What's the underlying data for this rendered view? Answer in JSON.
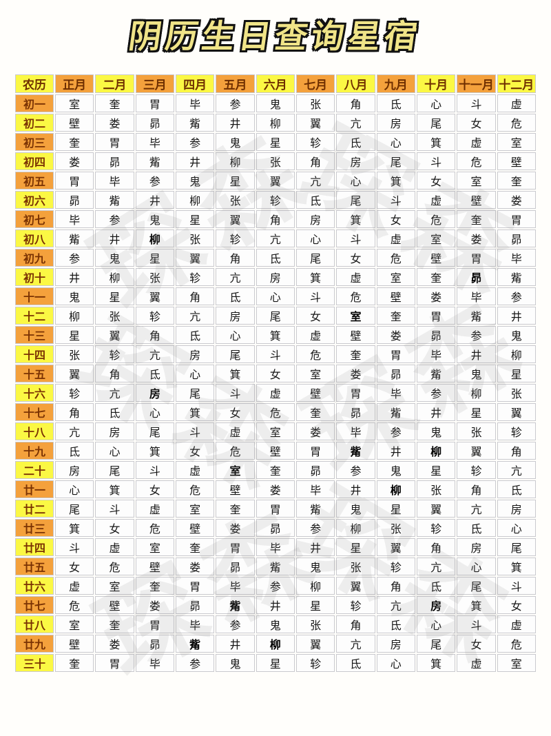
{
  "title": "阴历生日查询星宿",
  "colors": {
    "orange": "#f4a13c",
    "yellow": "#fbf844",
    "header_text": "#6e2e00",
    "label_text": "#7a3203",
    "cell_text": "#161616",
    "border": "#c9c9ce",
    "title_fill": "#f0e488",
    "title_outline": "#111111",
    "watermark_gray": "#8a8a8a"
  },
  "table": {
    "corner_label": "农历",
    "months": [
      "正月",
      "二月",
      "三月",
      "四月",
      "五月",
      "六月",
      "七月",
      "八月",
      "九月",
      "十月",
      "十一月",
      "十二月"
    ],
    "rows": [
      {
        "label": "初一",
        "cells": [
          "室",
          "奎",
          "胃",
          "毕",
          "参",
          "鬼",
          "张",
          "角",
          "氐",
          "心",
          "斗",
          "虚"
        ]
      },
      {
        "label": "初二",
        "cells": [
          "壁",
          "娄",
          "昴",
          "觜",
          "井",
          "柳",
          "翼",
          "亢",
          "房",
          "尾",
          "女",
          "危"
        ]
      },
      {
        "label": "初三",
        "cells": [
          "奎",
          "胃",
          "毕",
          "参",
          "鬼",
          "星",
          "轸",
          "氐",
          "心",
          "箕",
          "虚",
          "室"
        ]
      },
      {
        "label": "初四",
        "cells": [
          "娄",
          "昴",
          "觜",
          "井",
          "柳",
          "张",
          "角",
          "房",
          "尾",
          "斗",
          "危",
          "壁"
        ]
      },
      {
        "label": "初五",
        "cells": [
          "胃",
          "毕",
          "参",
          "鬼",
          "星",
          "翼",
          "亢",
          "心",
          "箕",
          "女",
          "室",
          "奎"
        ]
      },
      {
        "label": "初六",
        "cells": [
          "昴",
          "觜",
          "井",
          "柳",
          "张",
          "轸",
          "氐",
          "尾",
          "斗",
          "虚",
          "壁",
          "娄"
        ]
      },
      {
        "label": "初七",
        "cells": [
          "毕",
          "参",
          "鬼",
          "星",
          "翼",
          "角",
          "房",
          "箕",
          "女",
          "危",
          "奎",
          "胃"
        ]
      },
      {
        "label": "初八",
        "cells": [
          "觜",
          "井",
          "柳",
          "张",
          "轸",
          "亢",
          "心",
          "斗",
          "虚",
          "室",
          "娄",
          "昴"
        ]
      },
      {
        "label": "初九",
        "cells": [
          "参",
          "鬼",
          "星",
          "翼",
          "角",
          "氐",
          "尾",
          "女",
          "危",
          "壁",
          "胃",
          "毕"
        ]
      },
      {
        "label": "初十",
        "cells": [
          "井",
          "柳",
          "张",
          "轸",
          "亢",
          "房",
          "箕",
          "虚",
          "室",
          "奎",
          "昴",
          "觜"
        ]
      },
      {
        "label": "十一",
        "cells": [
          "鬼",
          "星",
          "翼",
          "角",
          "氐",
          "心",
          "斗",
          "危",
          "壁",
          "娄",
          "毕",
          "参"
        ]
      },
      {
        "label": "十二",
        "cells": [
          "柳",
          "张",
          "轸",
          "亢",
          "房",
          "尾",
          "女",
          "室",
          "奎",
          "胃",
          "觜",
          "井"
        ]
      },
      {
        "label": "十三",
        "cells": [
          "星",
          "翼",
          "角",
          "氐",
          "心",
          "箕",
          "虚",
          "壁",
          "娄",
          "昴",
          "参",
          "鬼"
        ]
      },
      {
        "label": "十四",
        "cells": [
          "张",
          "轸",
          "亢",
          "房",
          "尾",
          "斗",
          "危",
          "奎",
          "胃",
          "毕",
          "井",
          "柳"
        ]
      },
      {
        "label": "十五",
        "cells": [
          "翼",
          "角",
          "氐",
          "心",
          "箕",
          "女",
          "室",
          "娄",
          "昴",
          "觜",
          "鬼",
          "星"
        ]
      },
      {
        "label": "十六",
        "cells": [
          "轸",
          "亢",
          "房",
          "尾",
          "斗",
          "虚",
          "壁",
          "胃",
          "毕",
          "参",
          "柳",
          "张"
        ]
      },
      {
        "label": "十七",
        "cells": [
          "角",
          "氐",
          "心",
          "箕",
          "女",
          "危",
          "奎",
          "昴",
          "觜",
          "井",
          "星",
          "翼"
        ]
      },
      {
        "label": "十八",
        "cells": [
          "亢",
          "房",
          "尾",
          "斗",
          "虚",
          "室",
          "娄",
          "毕",
          "参",
          "鬼",
          "张",
          "轸"
        ]
      },
      {
        "label": "十九",
        "cells": [
          "氐",
          "心",
          "箕",
          "女",
          "危",
          "壁",
          "胃",
          "觜",
          "井",
          "柳",
          "翼",
          "角"
        ]
      },
      {
        "label": "二十",
        "cells": [
          "房",
          "尾",
          "斗",
          "虚",
          "室",
          "奎",
          "昴",
          "参",
          "鬼",
          "星",
          "轸",
          "亢"
        ]
      },
      {
        "label": "廿一",
        "cells": [
          "心",
          "箕",
          "女",
          "危",
          "壁",
          "娄",
          "毕",
          "井",
          "柳",
          "张",
          "角",
          "氐"
        ]
      },
      {
        "label": "廿二",
        "cells": [
          "尾",
          "斗",
          "虚",
          "室",
          "奎",
          "胃",
          "觜",
          "鬼",
          "星",
          "翼",
          "亢",
          "房"
        ]
      },
      {
        "label": "廿三",
        "cells": [
          "箕",
          "女",
          "危",
          "壁",
          "娄",
          "昴",
          "参",
          "柳",
          "张",
          "轸",
          "氐",
          "心"
        ]
      },
      {
        "label": "廿四",
        "cells": [
          "斗",
          "虚",
          "室",
          "奎",
          "胃",
          "毕",
          "井",
          "星",
          "翼",
          "角",
          "房",
          "尾"
        ]
      },
      {
        "label": "廿五",
        "cells": [
          "女",
          "危",
          "壁",
          "娄",
          "昴",
          "觜",
          "鬼",
          "张",
          "轸",
          "亢",
          "心",
          "箕"
        ]
      },
      {
        "label": "廿六",
        "cells": [
          "虚",
          "室",
          "奎",
          "胃",
          "毕",
          "参",
          "柳",
          "翼",
          "角",
          "氐",
          "尾",
          "斗"
        ]
      },
      {
        "label": "廿七",
        "cells": [
          "危",
          "壁",
          "娄",
          "昴",
          "觜",
          "井",
          "星",
          "轸",
          "亢",
          "房",
          "箕",
          "女"
        ]
      },
      {
        "label": "廿八",
        "cells": [
          "室",
          "奎",
          "胃",
          "毕",
          "参",
          "鬼",
          "张",
          "角",
          "氐",
          "心",
          "斗",
          "虚"
        ]
      },
      {
        "label": "廿九",
        "cells": [
          "壁",
          "娄",
          "昴",
          "觜",
          "井",
          "柳",
          "翼",
          "亢",
          "房",
          "尾",
          "女",
          "危"
        ]
      },
      {
        "label": "三十",
        "cells": [
          "奎",
          "胃",
          "毕",
          "参",
          "鬼",
          "星",
          "轸",
          "氐",
          "心",
          "箕",
          "虚",
          "室"
        ]
      }
    ],
    "bold_cells": [
      [
        7,
        2
      ],
      [
        9,
        10
      ],
      [
        11,
        7
      ],
      [
        15,
        2
      ],
      [
        18,
        7
      ],
      [
        18,
        9
      ],
      [
        19,
        4
      ],
      [
        20,
        8
      ],
      [
        26,
        4
      ],
      [
        26,
        9
      ],
      [
        28,
        3
      ],
      [
        28,
        5
      ]
    ]
  },
  "watermark": {
    "glyphs": "琛森"
  }
}
